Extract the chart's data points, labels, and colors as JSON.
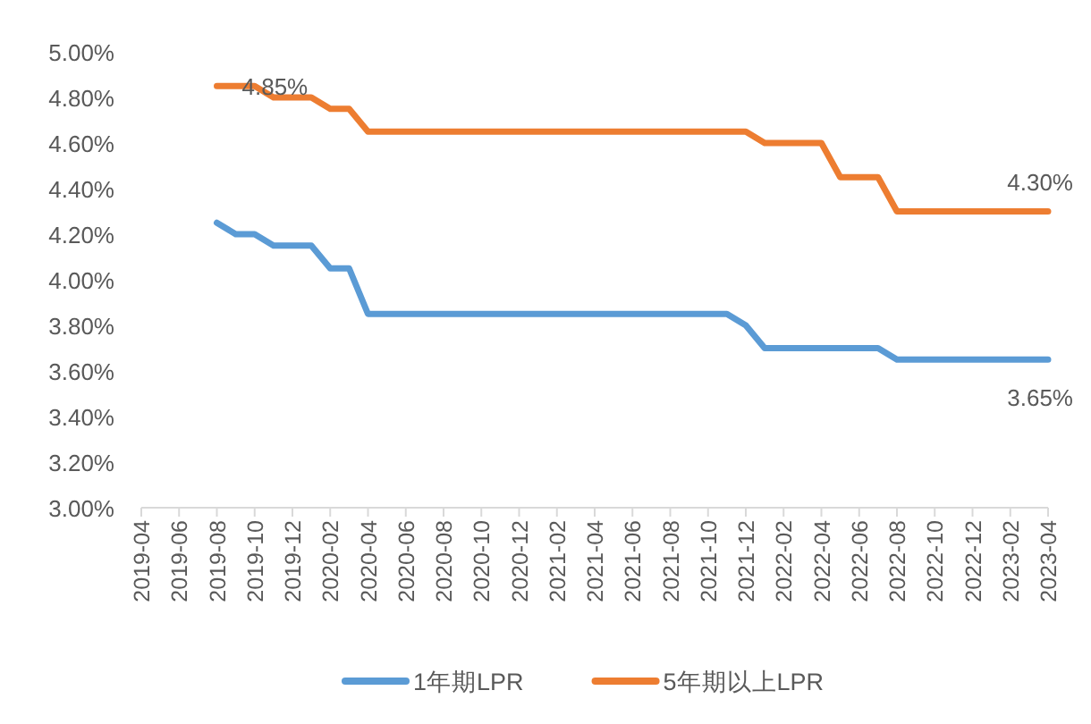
{
  "chart_data": {
    "type": "line",
    "categories": [
      "2019-04",
      null,
      "2019-06",
      null,
      "2019-08",
      null,
      "2019-10",
      null,
      "2019-12",
      null,
      "2020-02",
      null,
      "2020-04",
      null,
      "2020-06",
      null,
      "2020-08",
      null,
      "2020-10",
      null,
      "2020-12",
      null,
      "2021-02",
      null,
      "2021-04",
      null,
      "2021-06",
      null,
      "2021-08",
      null,
      "2021-10",
      null,
      "2021-12",
      null,
      "2022-02",
      null,
      "2022-04",
      null,
      "2022-06",
      null,
      "2022-08",
      null,
      "2022-10",
      null,
      "2022-12",
      null,
      "2023-02",
      null,
      "2023-04"
    ],
    "series": [
      {
        "name": "1年期LPR",
        "color": "#5b9bd5",
        "values": [
          null,
          null,
          null,
          null,
          4.25,
          4.2,
          4.2,
          4.15,
          4.15,
          4.15,
          4.05,
          4.05,
          3.85,
          3.85,
          3.85,
          3.85,
          3.85,
          3.85,
          3.85,
          3.85,
          3.85,
          3.85,
          3.85,
          3.85,
          3.85,
          3.85,
          3.85,
          3.85,
          3.85,
          3.85,
          3.85,
          3.85,
          3.8,
          3.7,
          3.7,
          3.7,
          3.7,
          3.7,
          3.7,
          3.7,
          3.65,
          3.65,
          3.65,
          3.65,
          3.65,
          3.65,
          3.65,
          3.65,
          3.65
        ]
      },
      {
        "name": "5年期以上LPR",
        "color": "#ed7d31",
        "values": [
          null,
          null,
          null,
          null,
          4.85,
          4.85,
          4.85,
          4.8,
          4.8,
          4.8,
          4.75,
          4.75,
          4.65,
          4.65,
          4.65,
          4.65,
          4.65,
          4.65,
          4.65,
          4.65,
          4.65,
          4.65,
          4.65,
          4.65,
          4.65,
          4.65,
          4.65,
          4.65,
          4.65,
          4.65,
          4.65,
          4.65,
          4.65,
          4.6,
          4.6,
          4.6,
          4.6,
          4.45,
          4.45,
          4.45,
          4.3,
          4.3,
          4.3,
          4.3,
          4.3,
          4.3,
          4.3,
          4.3,
          4.3
        ]
      }
    ],
    "ylim": [
      3,
      5
    ],
    "yticks": [
      {
        "value": 3,
        "label": "3.00%"
      },
      {
        "value": 3.2,
        "label": "3.20%"
      },
      {
        "value": 3.4,
        "label": "3.40%"
      },
      {
        "value": 3.6,
        "label": "3.60%"
      },
      {
        "value": 3.8,
        "label": "3.80%"
      },
      {
        "value": 4,
        "label": "4.00%"
      },
      {
        "value": 4.2,
        "label": "4.20%"
      },
      {
        "value": 4.4,
        "label": "4.40%"
      },
      {
        "value": 4.6,
        "label": "4.60%"
      },
      {
        "value": 4.8,
        "label": "4.80%"
      },
      {
        "value": 5,
        "label": "5.00%"
      }
    ],
    "annotations": [
      {
        "text": "4.85%",
        "x": "2019-08",
        "y": 4.85
      },
      {
        "text": "4.30%",
        "x": "2023-04",
        "y": 4.3
      },
      {
        "text": "3.65%",
        "x": "2023-04",
        "y": 3.65
      }
    ],
    "legend": "bottom",
    "marker": "none",
    "line_style": "solid"
  }
}
